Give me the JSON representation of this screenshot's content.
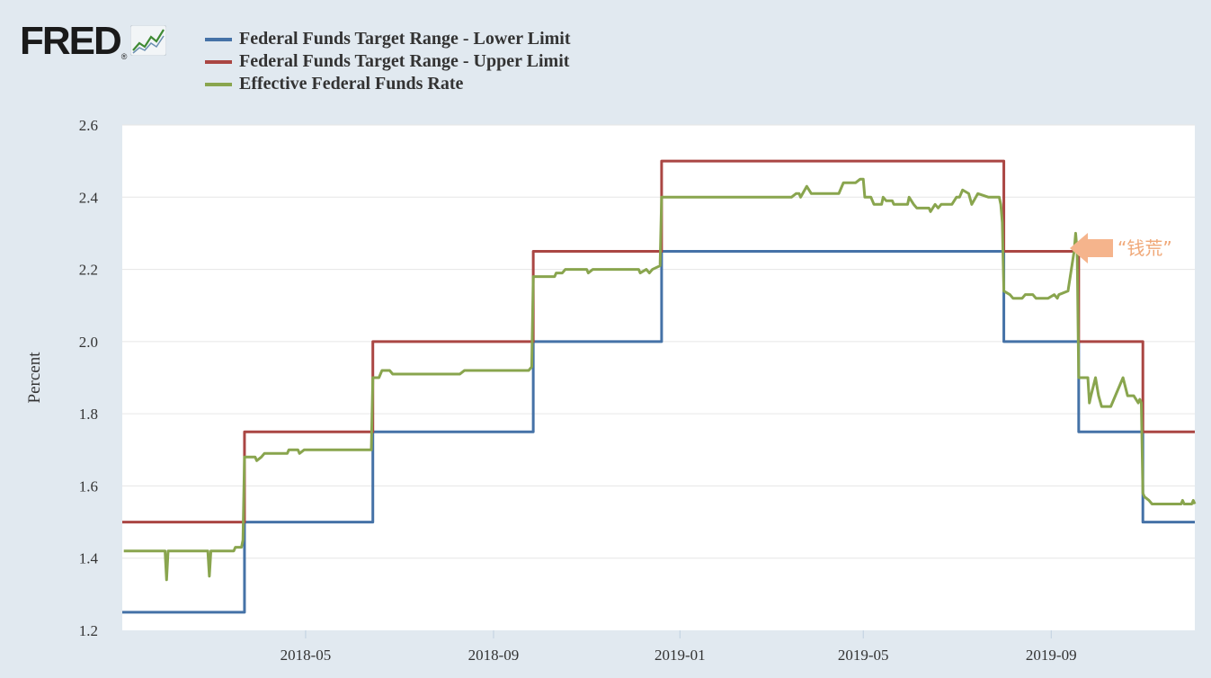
{
  "header": {
    "logo_text": "FRED",
    "logo_mark": "®",
    "logo_icon": "line-graph-icon"
  },
  "legend": [
    {
      "label": "Federal Funds Target Range - Lower Limit",
      "color": "#4572a7"
    },
    {
      "label": "Federal Funds Target Range - Upper Limit",
      "color": "#aa4643"
    },
    {
      "label": "Effective Federal Funds Rate",
      "color": "#89a54e"
    }
  ],
  "annotation": {
    "text": "“钱荒”",
    "color": "#f5b48c",
    "icon": "arrow-left-icon"
  },
  "chart_data": {
    "type": "line",
    "title": "",
    "xlabel": "",
    "ylabel": "Percent",
    "xlim": [
      "2018-01-01",
      "2019-12-04"
    ],
    "ylim": [
      1.2,
      2.6
    ],
    "yticks": [
      1.2,
      1.4,
      1.6,
      1.8,
      2.0,
      2.2,
      2.4,
      2.6
    ],
    "xticks": [
      "2018-05",
      "2018-09",
      "2019-01",
      "2019-05",
      "2019-09"
    ],
    "grid": true,
    "series": [
      {
        "name": "Federal Funds Target Range - Lower Limit",
        "color": "#4572a7",
        "step": true,
        "points": [
          [
            "2018-01-01",
            1.25
          ],
          [
            "2018-03-22",
            1.5
          ],
          [
            "2018-06-14",
            1.75
          ],
          [
            "2018-09-27",
            2.0
          ],
          [
            "2018-12-20",
            2.25
          ],
          [
            "2019-08-01",
            2.0
          ],
          [
            "2019-09-19",
            1.75
          ],
          [
            "2019-10-31",
            1.5
          ],
          [
            "2019-12-04",
            1.5
          ]
        ]
      },
      {
        "name": "Federal Funds Target Range - Upper Limit",
        "color": "#aa4643",
        "step": true,
        "points": [
          [
            "2018-01-01",
            1.5
          ],
          [
            "2018-03-22",
            1.75
          ],
          [
            "2018-06-14",
            2.0
          ],
          [
            "2018-09-27",
            2.25
          ],
          [
            "2018-12-20",
            2.5
          ],
          [
            "2019-08-01",
            2.25
          ],
          [
            "2019-09-19",
            2.0
          ],
          [
            "2019-10-31",
            1.75
          ],
          [
            "2019-12-04",
            1.75
          ]
        ]
      },
      {
        "name": "Effective Federal Funds Rate",
        "color": "#89a54e",
        "step": false,
        "points": [
          [
            "2018-01-02",
            1.42
          ],
          [
            "2018-01-29",
            1.42
          ],
          [
            "2018-01-30",
            1.34
          ],
          [
            "2018-01-31",
            1.42
          ],
          [
            "2018-02-26",
            1.42
          ],
          [
            "2018-02-27",
            1.35
          ],
          [
            "2018-02-28",
            1.42
          ],
          [
            "2018-03-15",
            1.42
          ],
          [
            "2018-03-16",
            1.43
          ],
          [
            "2018-03-20",
            1.43
          ],
          [
            "2018-03-21",
            1.45
          ],
          [
            "2018-03-22",
            1.68
          ],
          [
            "2018-03-29",
            1.68
          ],
          [
            "2018-03-30",
            1.67
          ],
          [
            "2018-04-02",
            1.68
          ],
          [
            "2018-04-04",
            1.69
          ],
          [
            "2018-04-19",
            1.69
          ],
          [
            "2018-04-20",
            1.7
          ],
          [
            "2018-04-26",
            1.7
          ],
          [
            "2018-04-27",
            1.69
          ],
          [
            "2018-04-30",
            1.7
          ],
          [
            "2018-06-13",
            1.7
          ],
          [
            "2018-06-14",
            1.9
          ],
          [
            "2018-06-18",
            1.9
          ],
          [
            "2018-06-20",
            1.92
          ],
          [
            "2018-06-25",
            1.92
          ],
          [
            "2018-06-27",
            1.91
          ],
          [
            "2018-08-10",
            1.91
          ],
          [
            "2018-08-13",
            1.92
          ],
          [
            "2018-09-24",
            1.92
          ],
          [
            "2018-09-26",
            1.93
          ],
          [
            "2018-09-27",
            2.18
          ],
          [
            "2018-10-11",
            2.18
          ],
          [
            "2018-10-12",
            2.19
          ],
          [
            "2018-10-16",
            2.19
          ],
          [
            "2018-10-18",
            2.2
          ],
          [
            "2018-11-01",
            2.2
          ],
          [
            "2018-11-02",
            2.19
          ],
          [
            "2018-11-05",
            2.2
          ],
          [
            "2018-12-05",
            2.2
          ],
          [
            "2018-12-06",
            2.19
          ],
          [
            "2018-12-10",
            2.2
          ],
          [
            "2018-12-12",
            2.19
          ],
          [
            "2018-12-14",
            2.2
          ],
          [
            "2018-12-19",
            2.21
          ],
          [
            "2018-12-20",
            2.4
          ],
          [
            "2019-03-15",
            2.4
          ],
          [
            "2019-03-18",
            2.41
          ],
          [
            "2019-03-20",
            2.41
          ],
          [
            "2019-03-21",
            2.4
          ],
          [
            "2019-03-25",
            2.43
          ],
          [
            "2019-03-28",
            2.41
          ],
          [
            "2019-04-15",
            2.41
          ],
          [
            "2019-04-18",
            2.44
          ],
          [
            "2019-04-26",
            2.44
          ],
          [
            "2019-04-29",
            2.45
          ],
          [
            "2019-05-01",
            2.45
          ],
          [
            "2019-05-02",
            2.4
          ],
          [
            "2019-05-06",
            2.4
          ],
          [
            "2019-05-08",
            2.38
          ],
          [
            "2019-05-13",
            2.38
          ],
          [
            "2019-05-14",
            2.4
          ],
          [
            "2019-05-16",
            2.39
          ],
          [
            "2019-05-20",
            2.39
          ],
          [
            "2019-05-21",
            2.38
          ],
          [
            "2019-05-30",
            2.38
          ],
          [
            "2019-05-31",
            2.4
          ],
          [
            "2019-06-03",
            2.38
          ],
          [
            "2019-06-05",
            2.37
          ],
          [
            "2019-06-13",
            2.37
          ],
          [
            "2019-06-14",
            2.36
          ],
          [
            "2019-06-17",
            2.38
          ],
          [
            "2019-06-19",
            2.37
          ],
          [
            "2019-06-21",
            2.38
          ],
          [
            "2019-06-28",
            2.38
          ],
          [
            "2019-07-01",
            2.4
          ],
          [
            "2019-07-03",
            2.4
          ],
          [
            "2019-07-05",
            2.42
          ],
          [
            "2019-07-09",
            2.41
          ],
          [
            "2019-07-11",
            2.38
          ],
          [
            "2019-07-15",
            2.41
          ],
          [
            "2019-07-22",
            2.4
          ],
          [
            "2019-07-29",
            2.4
          ],
          [
            "2019-07-30",
            2.38
          ],
          [
            "2019-07-31",
            2.33
          ],
          [
            "2019-08-01",
            2.14
          ],
          [
            "2019-08-05",
            2.13
          ],
          [
            "2019-08-07",
            2.12
          ],
          [
            "2019-08-13",
            2.12
          ],
          [
            "2019-08-15",
            2.13
          ],
          [
            "2019-08-20",
            2.13
          ],
          [
            "2019-08-22",
            2.12
          ],
          [
            "2019-08-30",
            2.12
          ],
          [
            "2019-09-03",
            2.13
          ],
          [
            "2019-09-05",
            2.12
          ],
          [
            "2019-09-06",
            2.13
          ],
          [
            "2019-09-12",
            2.14
          ],
          [
            "2019-09-16",
            2.25
          ],
          [
            "2019-09-17",
            2.3
          ],
          [
            "2019-09-18",
            2.25
          ],
          [
            "2019-09-19",
            1.9
          ],
          [
            "2019-09-25",
            1.9
          ],
          [
            "2019-09-26",
            1.83
          ],
          [
            "2019-09-27",
            1.85
          ],
          [
            "2019-09-30",
            1.9
          ],
          [
            "2019-10-02",
            1.85
          ],
          [
            "2019-10-04",
            1.82
          ],
          [
            "2019-10-10",
            1.82
          ],
          [
            "2019-10-18",
            1.9
          ],
          [
            "2019-10-21",
            1.85
          ],
          [
            "2019-10-25",
            1.85
          ],
          [
            "2019-10-28",
            1.83
          ],
          [
            "2019-10-29",
            1.84
          ],
          [
            "2019-10-30",
            1.83
          ],
          [
            "2019-10-31",
            1.58
          ],
          [
            "2019-11-01",
            1.57
          ],
          [
            "2019-11-04",
            1.56
          ],
          [
            "2019-11-06",
            1.55
          ],
          [
            "2019-11-25",
            1.55
          ],
          [
            "2019-11-26",
            1.56
          ],
          [
            "2019-11-27",
            1.55
          ],
          [
            "2019-12-02",
            1.55
          ],
          [
            "2019-12-03",
            1.56
          ],
          [
            "2019-12-04",
            1.55
          ]
        ]
      }
    ]
  }
}
